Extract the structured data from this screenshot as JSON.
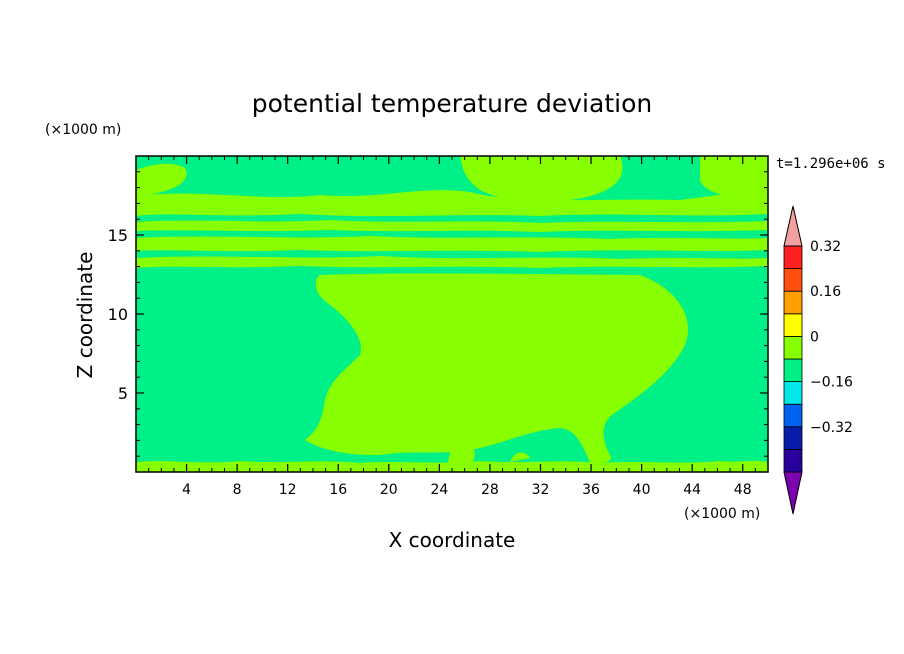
{
  "chart_data": {
    "type": "heatmap",
    "title": "potential temperature deviation",
    "xlabel": "X coordinate",
    "ylabel": "Z coordinate",
    "x_unit": "(×1000 m)",
    "y_unit": "(×1000 m)",
    "time_label": "t=1.296e+06 s",
    "xlim": [
      0,
      50
    ],
    "ylim": [
      0,
      20
    ],
    "x_ticks": [
      "4",
      "8",
      "12",
      "16",
      "20",
      "24",
      "28",
      "32",
      "36",
      "40",
      "44",
      "48"
    ],
    "y_ticks": [
      "5",
      "10",
      "15"
    ],
    "colorbar": {
      "labels": [
        "0.32",
        "0.16",
        "0",
        "−0.16",
        "−0.32"
      ],
      "levels": [
        -0.32,
        -0.16,
        0,
        0.16,
        0.32
      ],
      "colors": [
        "#7b00b0",
        "#2a009c",
        "#0a1cab",
        "#0060f0",
        "#00e8e8",
        "#00f088",
        "#88ff00",
        "#ffff00",
        "#ffa000",
        "#ff5010",
        "#ff2020",
        "#f4a0a0"
      ]
    },
    "field_colors": {
      "negative_bin": "#00f088",
      "positive_bin": "#88ff00"
    },
    "regions": {
      "lower_cool_band_top_km": 12.3,
      "warm_plume_x_range_km": [
        15,
        44
      ],
      "upper_layer_range_km": [
        12.3,
        17
      ]
    }
  }
}
